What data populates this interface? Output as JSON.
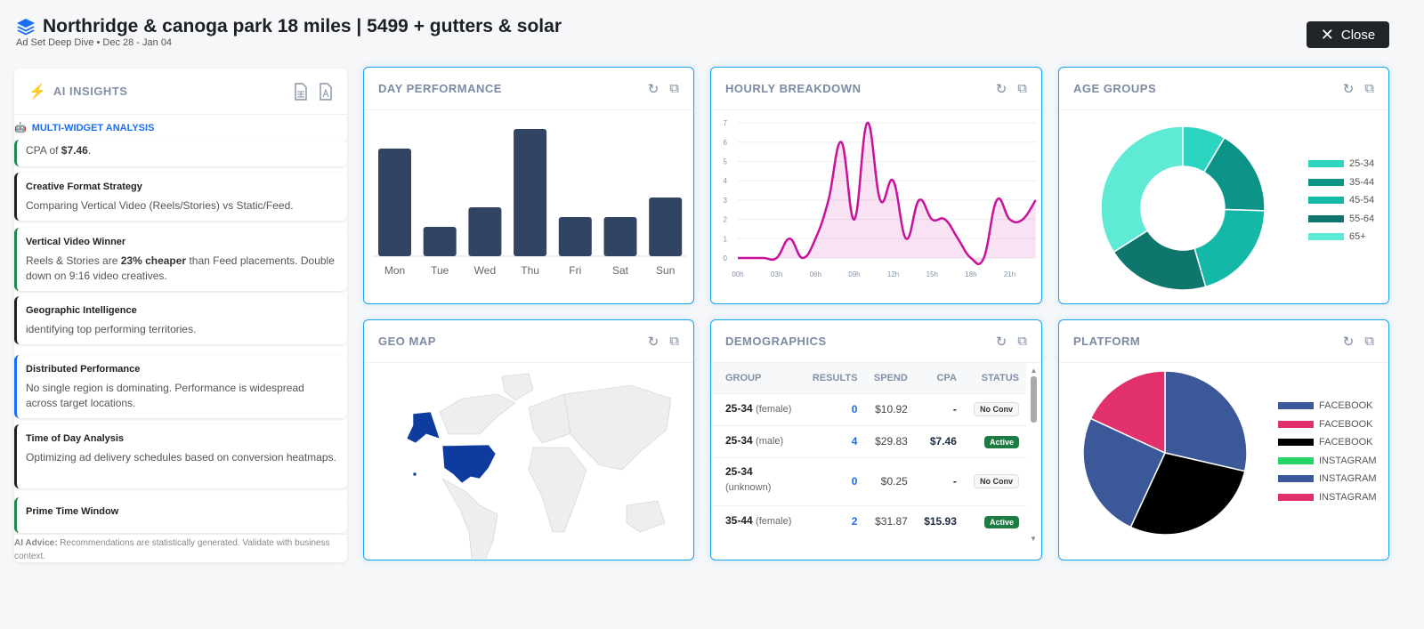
{
  "header": {
    "title": "Northridge & canoga park 18 miles | 5499 + gutters & solar",
    "subtitle": "Ad Set Deep Dive • Dec 28 - Jan 04",
    "close_label": "Close",
    "icon": "layers-icon"
  },
  "insights": {
    "title": "AI INSIGHTS",
    "section": "MULTI-WIDGET ANALYSIS",
    "cards": [
      {
        "title": "",
        "body_pre": "CPA of ",
        "body_bold": "$7.46",
        "body_post": ".",
        "color": "#1e8a4f"
      },
      {
        "title": "Creative Format Strategy",
        "body_pre": "Comparing Vertical Video (Reels/Stories) vs Static/Feed.",
        "body_bold": "",
        "body_post": "",
        "color": "#222"
      },
      {
        "title": "Vertical Video Winner",
        "body_pre": "Reels & Stories are ",
        "body_bold": "23% cheaper",
        "body_post": " than Feed placements. Double down on 9:16 video creatives.",
        "color": "#1e8a4f"
      },
      {
        "title": "Geographic Intelligence",
        "body_pre": "identifying top performing territories.",
        "body_bold": "",
        "body_post": "",
        "color": "#222"
      },
      {
        "title": "Distributed Performance",
        "body_pre": "No single region is dominating. Performance is widespread across target locations.",
        "body_bold": "",
        "body_post": "",
        "color": "#1a6ef5"
      },
      {
        "title": "Time of Day Analysis",
        "body_pre": "Optimizing ad delivery schedules based on conversion heatmaps.",
        "body_bold": "",
        "body_post": "",
        "color": "#222"
      },
      {
        "title": "Prime Time Window",
        "body_pre": "",
        "body_bold": "",
        "body_post": "",
        "color": "#1e8a4f"
      }
    ],
    "advice_label": "AI Advice:",
    "advice_text": " Recommendations are statistically generated. Validate with business context."
  },
  "widgets": {
    "day": "DAY PERFORMANCE",
    "hourly": "HOURLY BREAKDOWN",
    "age": "AGE GROUPS",
    "geo": "GEO MAP",
    "demo": "DEMOGRAPHICS",
    "platform": "PLATFORM"
  },
  "demographics": {
    "columns": [
      "GROUP",
      "RESULTS",
      "SPEND",
      "CPA",
      "STATUS"
    ],
    "rows": [
      {
        "group": "25-34",
        "sub": "(female)",
        "results": "0",
        "spend": "$10.92",
        "cpa": "-",
        "status": "No Conv"
      },
      {
        "group": "25-34",
        "sub": "(male)",
        "results": "4",
        "spend": "$29.83",
        "cpa": "$7.46",
        "status": "Active"
      },
      {
        "group": "25-34",
        "sub": "(unknown)",
        "results": "0",
        "spend": "$0.25",
        "cpa": "-",
        "status": "No Conv"
      },
      {
        "group": "35-44",
        "sub": "(female)",
        "results": "2",
        "spend": "$31.87",
        "cpa": "$15.93",
        "status": "Active"
      }
    ]
  },
  "geo": {
    "highlighted": [
      "United States"
    ],
    "highlight_color": "#0d3b9e"
  },
  "chart_data": [
    {
      "type": "bar",
      "categories": [
        "Mon",
        "Tue",
        "Wed",
        "Thu",
        "Fri",
        "Sat",
        "Sun"
      ],
      "values": [
        11,
        3,
        5,
        13,
        4,
        4,
        6
      ],
      "color": "#324463"
    },
    {
      "type": "area",
      "x": [
        "00h",
        "01h",
        "02h",
        "03h",
        "04h",
        "05h",
        "06h",
        "07h",
        "08h",
        "09h",
        "10h",
        "11h",
        "12h",
        "13h",
        "14h",
        "15h",
        "16h",
        "17h",
        "18h",
        "19h",
        "20h",
        "21h",
        "22h",
        "23h"
      ],
      "xticks": [
        "00h",
        "03h",
        "06h",
        "09h",
        "12h",
        "15h",
        "18h",
        "21h"
      ],
      "values": [
        0,
        0,
        0,
        0,
        1,
        0,
        1,
        3,
        6,
        2,
        7,
        3,
        4,
        1,
        3,
        2,
        2,
        1,
        0,
        0,
        3,
        2,
        2,
        3
      ],
      "ylim": [
        0,
        7
      ],
      "yticks": [
        0,
        1,
        2,
        3,
        4,
        5,
        6,
        7
      ],
      "color": "#c8119d",
      "grid": true
    },
    {
      "type": "donut",
      "labels": [
        "25-34",
        "35-44",
        "45-54",
        "55-64",
        "65+"
      ],
      "values": [
        8.5,
        17,
        20,
        20.5,
        34
      ],
      "colors": [
        "#2dd4bf",
        "#0d9488",
        "#14b8a6",
        "#0f766e",
        "#5eead4"
      ],
      "legend": "right"
    },
    {
      "type": "pie",
      "labels": [
        "FACEBOOK",
        "FACEBOOK",
        "FACEBOOK",
        "INSTAGRAM",
        "INSTAGRAM",
        "INSTAGRAM"
      ],
      "values": [
        28.6,
        0,
        28.3,
        0,
        25,
        18.1
      ],
      "colors": [
        "#3b5998",
        "#e1306c",
        "#000000",
        "#25d366",
        "#3b5998",
        "#e1306c"
      ],
      "legend": "right"
    }
  ]
}
